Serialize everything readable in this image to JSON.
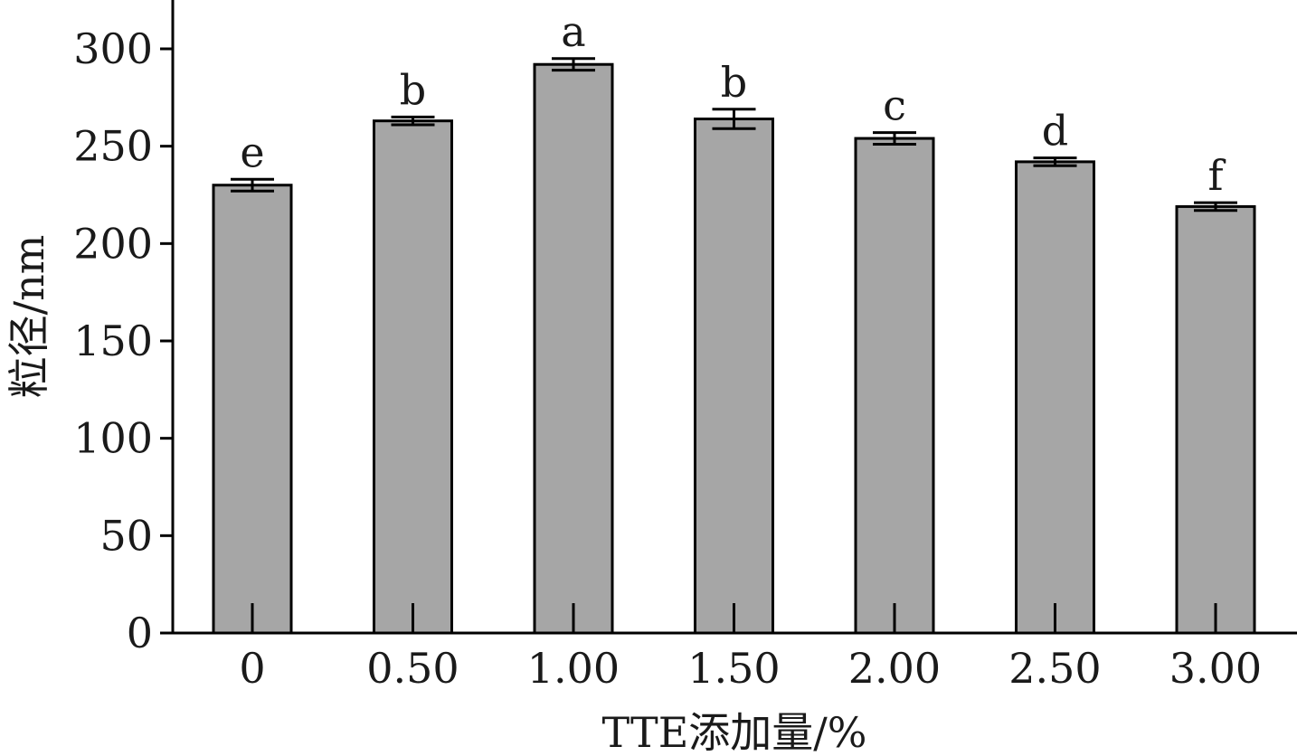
{
  "chart_data": {
    "type": "bar",
    "title": "",
    "xlabel": "TTE添加量/%",
    "ylabel": "粒径/nm",
    "ylim": [
      0,
      325
    ],
    "yticks": [
      0,
      50,
      100,
      150,
      200,
      250,
      300
    ],
    "categories": [
      "0",
      "0.50",
      "1.00",
      "1.50",
      "2.00",
      "2.50",
      "3.00"
    ],
    "values": [
      230,
      263,
      292,
      264,
      254,
      242,
      219
    ],
    "errors": [
      3,
      2,
      3,
      5,
      3,
      2,
      2
    ],
    "significance": [
      "e",
      "b",
      "a",
      "b",
      "c",
      "d",
      "f"
    ],
    "grid": false,
    "colors": {
      "bar_fill": "#a6a6a6",
      "bar_stroke": "#000000",
      "axis": "#000000"
    }
  }
}
